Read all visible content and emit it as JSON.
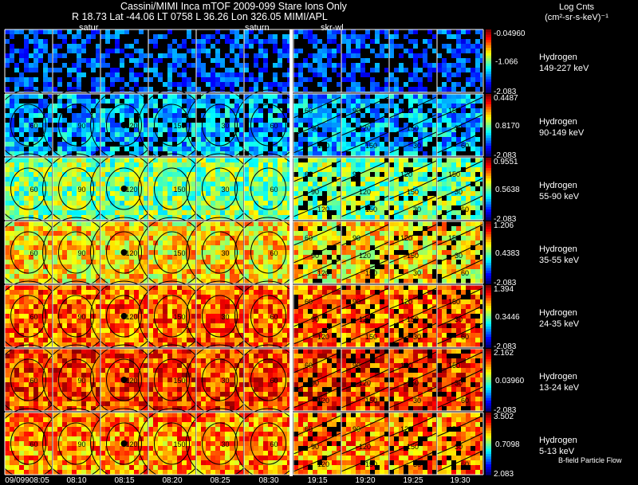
{
  "header": {
    "title": "Cassini/MIMI Inca mTOF  2009-099   Stare    Ions Only",
    "coords_line": "R      18.73 Lat -44.06 LT 0758 L      36.26 Lon       326.05  MIMI/APL",
    "legend_title_1": "Log Cnts",
    "legend_title_2": "(cm²-sr-s-keV)⁻¹"
  },
  "top_labels": [
    "satur",
    "saturn",
    "skr-wl"
  ],
  "time_labels": [
    "09/09908:05",
    "08:10",
    "08:15",
    "08:20",
    "08:25",
    "08:30",
    "19:15",
    "19:20",
    "19:25",
    "19:30"
  ],
  "footer_note": "B-field Particle Flow",
  "colors": {
    "background": "#000000",
    "grid_line": "#ffffff",
    "contour": "#000000"
  },
  "chart_data": {
    "type": "heatmap",
    "title": "Cassini/MIMI Inca mTOF  2009-099   Stare    Ions Only",
    "columns": 10,
    "colormap": "jet",
    "panels": [
      {
        "species": "Hydrogen",
        "energy": "149-227 keV",
        "cbar_max": "-0.04960",
        "cbar_mid": "-1.066",
        "cbar_min": "-2.083",
        "level": 0.12,
        "contour_labels": []
      },
      {
        "species": "Hydrogen",
        "energy": "90-149 keV",
        "cbar_max": "0.4487",
        "cbar_mid": "0.8170",
        "cbar_min": "-2.083",
        "level": 0.26,
        "contour_labels": [
          "30",
          "60",
          "90",
          "120",
          "150"
        ]
      },
      {
        "species": "Hydrogen",
        "energy": "55-90 keV",
        "cbar_max": "0.9551",
        "cbar_mid": "0.5638",
        "cbar_min": "-2.083",
        "level": 0.5,
        "contour_labels": [
          "30",
          "60",
          "90",
          "120",
          "150"
        ]
      },
      {
        "species": "Hydrogen",
        "energy": "35-55 keV",
        "cbar_max": "1.206",
        "cbar_mid": "0.4383",
        "cbar_min": "-2.083",
        "level": 0.65,
        "contour_labels": [
          "30",
          "60",
          "90",
          "120",
          "150"
        ]
      },
      {
        "species": "Hydrogen",
        "energy": "24-35 keV",
        "cbar_max": "1.394",
        "cbar_mid": "0.3446",
        "cbar_min": "-2.083",
        "level": 0.78,
        "contour_labels": [
          "30",
          "60",
          "90",
          "120",
          "150"
        ]
      },
      {
        "species": "Hydrogen",
        "energy": "13-24 keV",
        "cbar_max": "2.162",
        "cbar_mid": "0.03960",
        "cbar_min": "-2.083",
        "level": 0.82,
        "contour_labels": [
          "30",
          "60",
          "90",
          "120",
          "150"
        ]
      },
      {
        "species": "Hydrogen",
        "energy": "5-13 keV",
        "cbar_max": "3.502",
        "cbar_mid": "0.7098",
        "cbar_min": "2.083",
        "level": 0.74,
        "contour_labels": [
          "30",
          "60",
          "90",
          "120",
          "150"
        ]
      }
    ]
  }
}
